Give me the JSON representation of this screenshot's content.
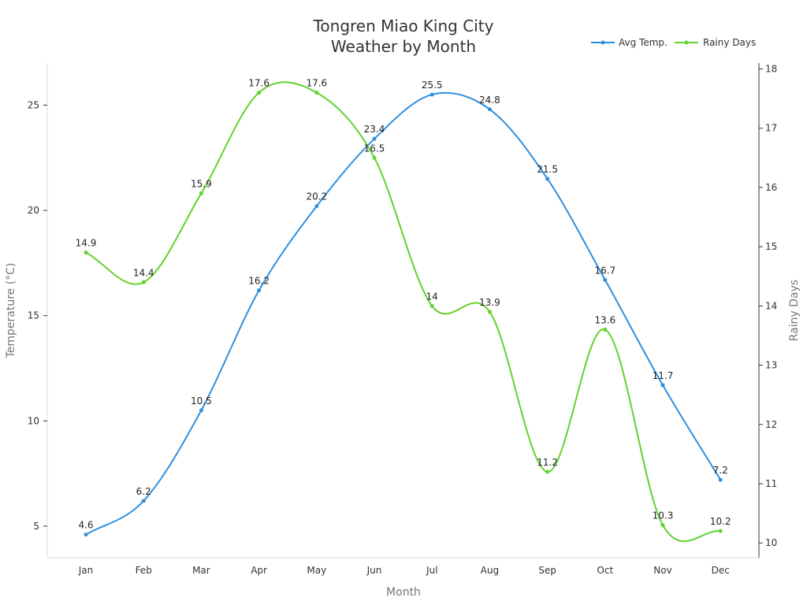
{
  "chart_data": {
    "type": "line",
    "title_lines": [
      "Tongren Miao King City",
      "Weather by Month"
    ],
    "xlabel": "Month",
    "ylabel_left": "Temperature (°C)",
    "ylabel_right": "Rainy Days",
    "categories": [
      "Jan",
      "Feb",
      "Mar",
      "Apr",
      "May",
      "Jun",
      "Jul",
      "Aug",
      "Sep",
      "Oct",
      "Nov",
      "Dec"
    ],
    "y_left": {
      "range": [
        3.5,
        27.0
      ],
      "ticks": [
        5,
        10,
        15,
        20,
        25
      ]
    },
    "y_right": {
      "range": [
        9.75,
        18.1
      ],
      "ticks": [
        10,
        11,
        12,
        13,
        14,
        15,
        16,
        17,
        18
      ]
    },
    "grid": false,
    "legend_position": "top-right",
    "series": [
      {
        "name": "Avg Temp.",
        "axis": "left",
        "color": "#2e8fdf",
        "values": [
          4.6,
          6.2,
          10.5,
          16.2,
          20.2,
          23.4,
          25.5,
          24.8,
          21.5,
          16.7,
          11.7,
          7.2
        ]
      },
      {
        "name": "Rainy Days",
        "axis": "right",
        "color": "#62d22f",
        "values": [
          14.9,
          14.4,
          15.9,
          17.6,
          17.6,
          16.5,
          14,
          13.9,
          11.2,
          13.6,
          10.3,
          10.2
        ]
      }
    ]
  }
}
